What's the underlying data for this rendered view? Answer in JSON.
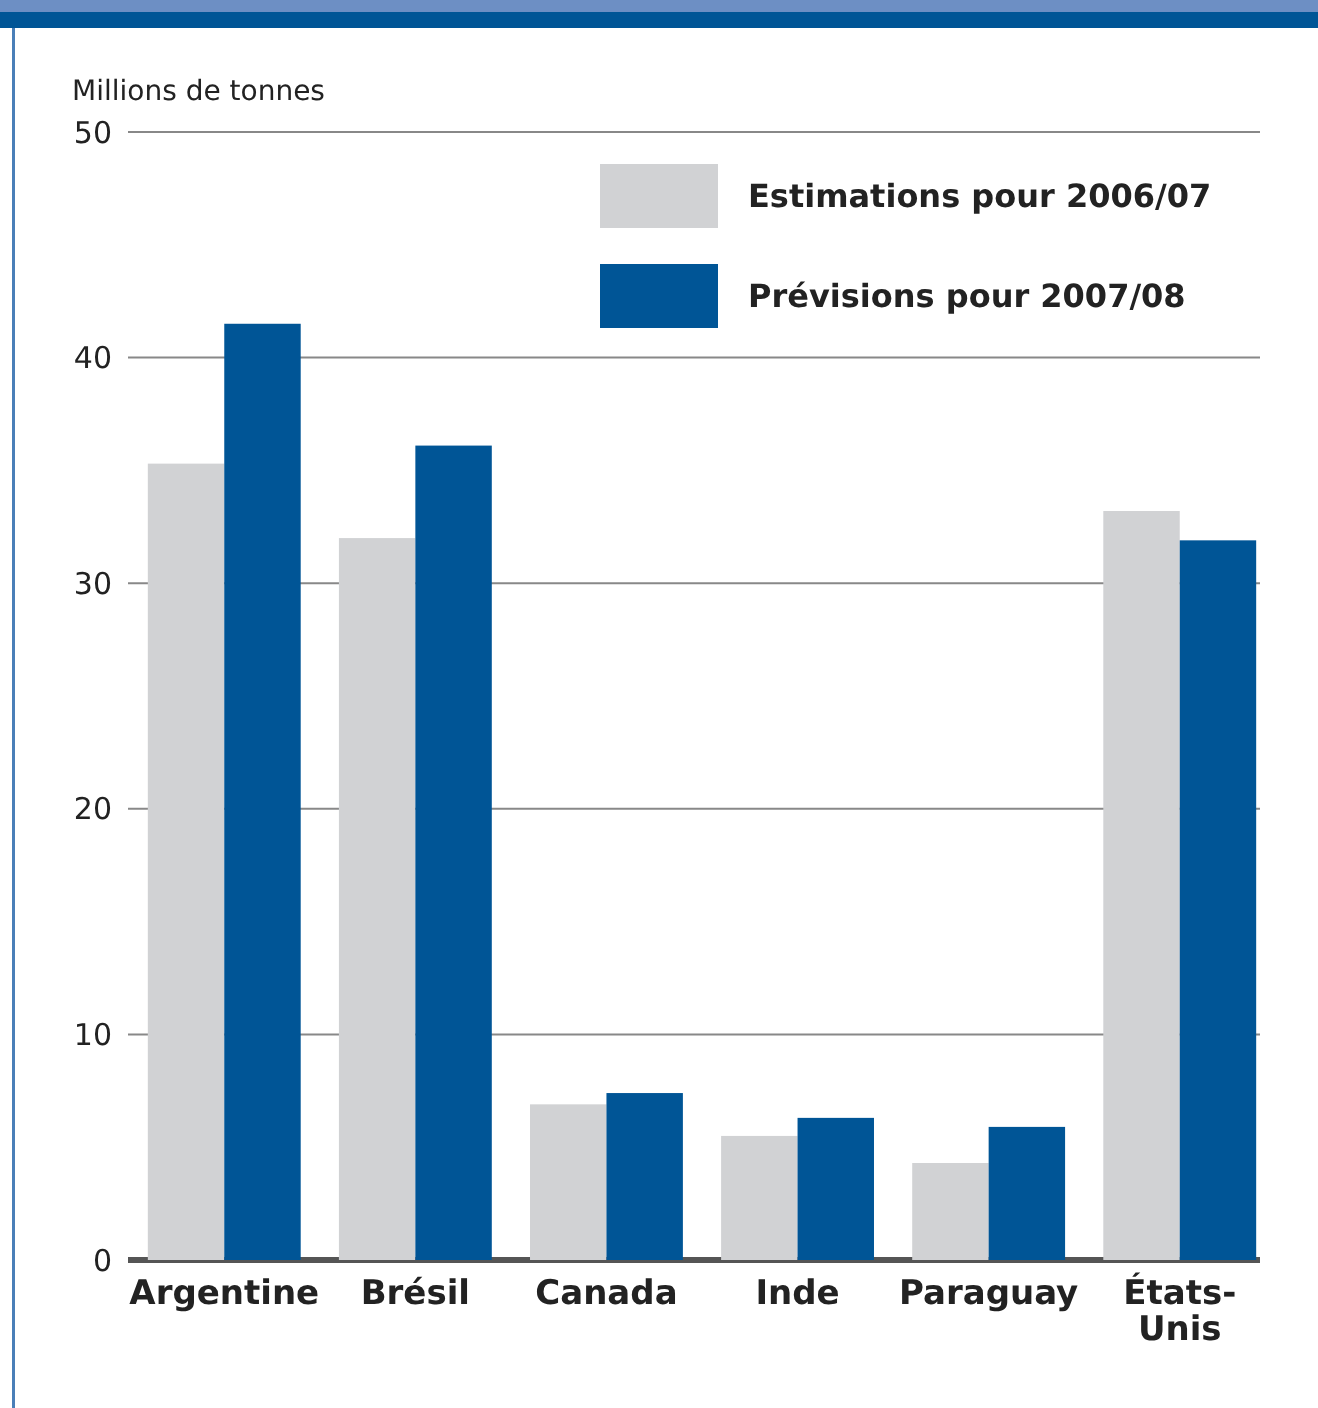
{
  "chart_data": {
    "type": "bar",
    "ylabel": "Millions de tonnes",
    "categories": [
      "Argentine",
      "Brésil",
      "Canada",
      "Inde",
      "Paraguay",
      "États-Unis"
    ],
    "series": [
      {
        "name": "Estimations pour 2006/07",
        "color": "#d1d2d4",
        "values": [
          35.3,
          32.0,
          6.9,
          5.5,
          4.3,
          33.2
        ]
      },
      {
        "name": "Prévisions pour 2007/08",
        "color": "#005596",
        "values": [
          41.5,
          36.1,
          7.4,
          6.3,
          5.9,
          31.9
        ]
      }
    ],
    "ylim": [
      0,
      50
    ],
    "yticks": [
      0,
      10,
      20,
      30,
      40,
      50
    ],
    "grid": "y",
    "legend": "top right"
  }
}
